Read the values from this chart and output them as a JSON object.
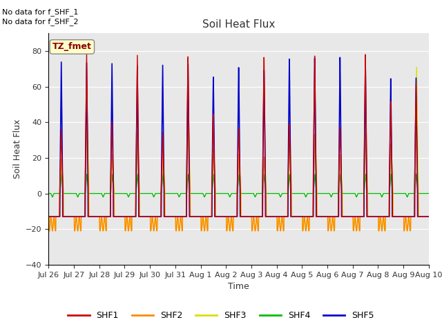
{
  "title": "Soil Heat Flux",
  "xlabel": "Time",
  "ylabel": "Soil Heat Flux",
  "ylim": [
    -40,
    90
  ],
  "yticks": [
    -40,
    -20,
    0,
    20,
    40,
    60,
    80
  ],
  "plot_bg": "#e8e8e8",
  "fig_bg": "#ffffff",
  "text_annotations": [
    "No data for f_SHF_1",
    "No data for f_SHF_2"
  ],
  "legend_label": "TZ_fmet",
  "series_colors": {
    "SHF1": "#cc0000",
    "SHF2": "#ff8800",
    "SHF3": "#dddd00",
    "SHF4": "#00bb00",
    "SHF5": "#0000cc"
  },
  "num_days": 15,
  "date_labels": [
    "Jul 26",
    "Jul 27",
    "Jul 28",
    "Jul 29",
    "Jul 30",
    "Jul 31",
    "Aug 1",
    "Aug 2",
    "Aug 3",
    "Aug 4",
    "Aug 5",
    "Aug 6",
    "Aug 7",
    "Aug 8",
    "Aug 9",
    "Aug 10"
  ]
}
